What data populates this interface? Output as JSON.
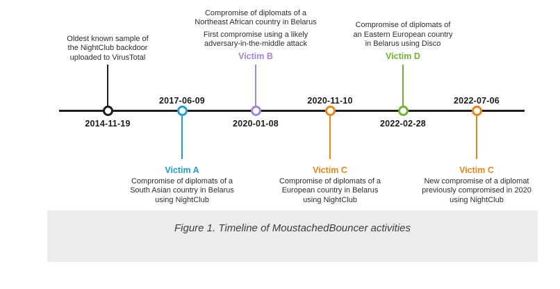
{
  "figure": {
    "caption": "Figure 1. Timeline of MoustachedBouncer activities"
  },
  "timeline": {
    "axis_color": "#1d1d1b",
    "events": [
      {
        "date": "2014-11-19",
        "side": "above",
        "color": "#1d1d1b",
        "victim": null,
        "paragraphs": [
          [
            "Oldest known sample of",
            "the NightClub backdoor",
            "uploaded to VirusTotal"
          ]
        ]
      },
      {
        "date": "2017-06-09",
        "side": "below",
        "color": "#1e9cd7",
        "victim": "Victim A",
        "paragraphs": [
          [
            "Compromise of diplomats of a",
            "South Asian country in Belarus",
            "using NightClub"
          ]
        ]
      },
      {
        "date": "2020-01-08",
        "side": "above",
        "color": "#a283e2",
        "victim": "Victim B",
        "paragraphs": [
          [
            "Compromise of diplomats of a",
            "Northeast African country in Belarus"
          ],
          [
            "First compromise using a likely",
            "adversary-in-the-middle attack"
          ]
        ]
      },
      {
        "date": "2020-11-10",
        "side": "below",
        "color": "#ea8511",
        "victim": "Victim C",
        "paragraphs": [
          [
            "Compromise of diplomats of a",
            "European country in Belarus",
            "using NightClub"
          ]
        ]
      },
      {
        "date": "2022-02-28",
        "side": "above",
        "color": "#6fb52c",
        "victim": "Victim D",
        "paragraphs": [
          [
            "Compromise of diplomats of",
            "an Eastern European country",
            "in Belarus using Disco"
          ]
        ]
      },
      {
        "date": "2022-07-06",
        "side": "below",
        "color": "#ea8511",
        "victim": "Victim C",
        "paragraphs": [
          [
            "New compromise of a diplomat",
            "previously compromised in 2020",
            "using NightClub"
          ]
        ]
      }
    ]
  }
}
